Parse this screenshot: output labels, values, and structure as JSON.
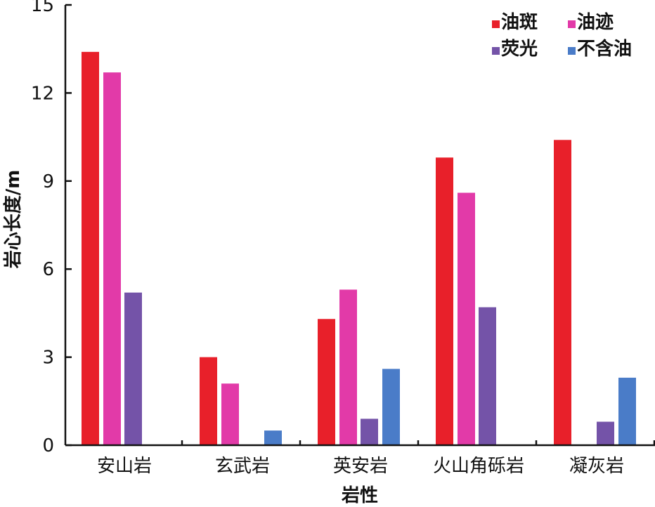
{
  "chart_data": {
    "type": "bar",
    "title": "",
    "xlabel": "岩性",
    "ylabel": "岩心长度/m",
    "categories": [
      "安山岩",
      "玄武岩",
      "英安岩",
      "火山角砾岩",
      "凝灰岩"
    ],
    "series": [
      {
        "name": "油斑",
        "color": "#e8202a",
        "values": [
          13.4,
          3.0,
          4.3,
          9.8,
          10.4
        ]
      },
      {
        "name": "油迹",
        "color": "#e23aa8",
        "values": [
          12.7,
          2.1,
          5.3,
          8.6,
          0
        ]
      },
      {
        "name": "荧光",
        "color": "#7453a8",
        "values": [
          5.2,
          0,
          0.9,
          4.7,
          0.8
        ]
      },
      {
        "name": "不含油",
        "color": "#4a7cc8",
        "values": [
          0,
          0.5,
          2.6,
          0,
          2.3
        ]
      }
    ],
    "ylim": [
      0,
      15
    ],
    "yticks": [
      "0",
      "3",
      "6",
      "9",
      "12",
      "15"
    ],
    "grid": false,
    "legend_position": "top-right"
  }
}
